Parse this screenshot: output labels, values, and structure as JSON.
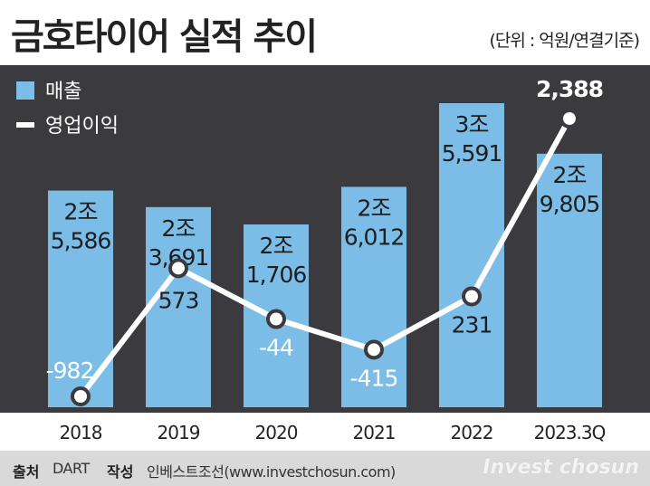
{
  "header": {
    "title": "금호타이어 실적 추이",
    "unit": "(단위 : 억원/연결기준)"
  },
  "footer": {
    "source_label": "출처",
    "source_value": "DART",
    "author_label": "작성",
    "author_value": "인베스트조선(www.investchosun.com)",
    "brand": "Invest chosun"
  },
  "colors": {
    "bar": "#7cbde8",
    "line": "#ffffff",
    "panel": "#3b3a3e"
  },
  "chart_data": {
    "type": "bar",
    "categories": [
      "2018",
      "2019",
      "2020",
      "2021",
      "2022",
      "2023.3Q"
    ],
    "series": [
      {
        "name": "매출",
        "type": "bar",
        "values": [
          25586,
          23691,
          21706,
          26012,
          35591,
          29805
        ],
        "labels": [
          [
            "2조",
            "5,586"
          ],
          [
            "2조",
            "3,691"
          ],
          [
            "2조",
            "1,706"
          ],
          [
            "2조",
            "6,012"
          ],
          [
            "3조",
            "5,591"
          ],
          [
            "2조",
            "9,805"
          ]
        ]
      },
      {
        "name": "영업이익",
        "type": "line",
        "values": [
          -982,
          573,
          -44,
          -415,
          231,
          2388
        ],
        "labels": [
          "-982",
          "573",
          "-44",
          "-415",
          "231",
          "2,388"
        ]
      }
    ],
    "legend": {
      "position": "top-left",
      "items": [
        "매출",
        "영업이익"
      ]
    }
  }
}
